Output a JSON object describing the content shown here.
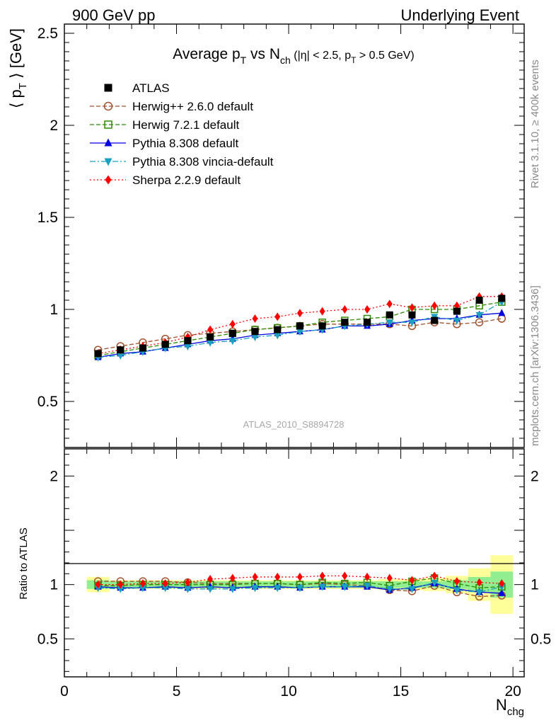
{
  "header": {
    "left": "900 GeV pp",
    "right": "Underlying Event"
  },
  "side_labels": {
    "rivet": "Rivet 3.1.10, ≥ 400k events",
    "mcplots": "mcplots.cern.ch [arXiv:1306.3436]"
  },
  "colors": {
    "ATLAS": "#000000",
    "Herwig++ 2.6.0 default": "#a0522d",
    "Herwig 7.2.1 default": "#2e8b00",
    "Pythia 8.308 default": "#0000e0",
    "Pythia 8.308 vincia-default": "#1aa0c0",
    "Sherpa 2.2.9 default": "#ff0000",
    "band_inner": "#90ee90",
    "band_outer": "#ffff99"
  },
  "chart_data": [
    {
      "type": "line",
      "title": "Average pT vs Nch (|η| < 2.5, pT > 0.5 GeV)",
      "title_parts": {
        "main_a": "Average p",
        "main_sub_a": "T",
        "main_b": " vs N",
        "main_sub_b": "ch",
        "cond_a": " (|η| < 2.5, p",
        "cond_sub": "T",
        "cond_b": " > 0.5 GeV)"
      },
      "ylabel": "⟨ pT ⟩ [GeV]",
      "ylabel_parts": {
        "a": "⟨ p",
        "sub": "T",
        "b": " ⟩ [GeV]"
      },
      "xlim": [
        0,
        20.5
      ],
      "ylim": [
        0.25,
        2.55
      ],
      "yticks": [
        0.5,
        1,
        1.5,
        2,
        2.5
      ],
      "ytick_labels": [
        "0.5",
        "1",
        "1.5",
        "2",
        "2.5"
      ],
      "watermark": "ATLAS_2010_S8894728",
      "legend_position": "top-left",
      "x": [
        1.5,
        2.5,
        3.5,
        4.5,
        5.5,
        6.5,
        7.5,
        8.5,
        9.5,
        10.5,
        11.5,
        12.5,
        13.5,
        14.5,
        15.5,
        16.5,
        17.5,
        18.5,
        19.5
      ],
      "series": [
        {
          "name": "ATLAS",
          "marker": "square-filled",
          "line": "none",
          "values": [
            0.76,
            0.78,
            0.79,
            0.81,
            0.83,
            0.85,
            0.87,
            0.88,
            0.89,
            0.91,
            0.91,
            0.93,
            0.93,
            0.97,
            0.97,
            0.94,
            0.99,
            1.05,
            1.06
          ]
        },
        {
          "name": "Herwig++ 2.6.0 default",
          "marker": "circle-open",
          "line": "dashed",
          "values": [
            0.78,
            0.8,
            0.82,
            0.84,
            0.86,
            0.87,
            0.88,
            0.89,
            0.9,
            0.91,
            0.92,
            0.92,
            0.92,
            0.92,
            0.91,
            0.93,
            0.92,
            0.93,
            0.95
          ]
        },
        {
          "name": "Herwig 7.2.1 default",
          "marker": "square-open",
          "line": "dashed",
          "values": [
            0.75,
            0.77,
            0.79,
            0.81,
            0.83,
            0.85,
            0.87,
            0.89,
            0.9,
            0.91,
            0.93,
            0.94,
            0.95,
            0.96,
            1.0,
            1.0,
            1.0,
            1.02,
            1.04
          ]
        },
        {
          "name": "Pythia 8.308 default",
          "marker": "triangle-up-filled",
          "line": "solid",
          "values": [
            0.74,
            0.76,
            0.77,
            0.79,
            0.81,
            0.83,
            0.84,
            0.86,
            0.87,
            0.88,
            0.89,
            0.91,
            0.91,
            0.92,
            0.94,
            0.95,
            0.95,
            0.97,
            0.98
          ]
        },
        {
          "name": "Pythia 8.308 vincia-default",
          "marker": "triangle-down-filled",
          "line": "dashdot",
          "values": [
            0.74,
            0.75,
            0.77,
            0.79,
            0.8,
            0.82,
            0.83,
            0.85,
            0.86,
            0.88,
            0.89,
            0.91,
            0.92,
            0.93,
            0.93,
            0.96,
            0.94,
            0.97,
            1.04
          ]
        },
        {
          "name": "Sherpa 2.2.9 default",
          "marker": "diamond-filled",
          "line": "dotted",
          "values": [
            0.76,
            0.78,
            0.8,
            0.82,
            0.85,
            0.89,
            0.92,
            0.95,
            0.96,
            0.98,
            0.99,
            1.0,
            1.0,
            1.03,
            1.01,
            1.02,
            1.02,
            1.07,
            1.07
          ]
        }
      ]
    },
    {
      "type": "line",
      "ylabel": "Ratio to ATLAS",
      "xlabel": "Nchg",
      "xlabel_parts": {
        "a": "N",
        "sub": "chg"
      },
      "xlim": [
        0,
        20.5
      ],
      "ylim": [
        0.15,
        2.25
      ],
      "xticks": [
        0,
        5,
        10,
        15,
        20
      ],
      "xtick_labels": [
        "0",
        "5",
        "10",
        "15",
        "20"
      ],
      "yticks": [
        0.5,
        1,
        2
      ],
      "ytick_labels": [
        "0.5",
        "1",
        "2"
      ],
      "x": [
        1.5,
        2.5,
        3.5,
        4.5,
        5.5,
        6.5,
        7.5,
        8.5,
        9.5,
        10.5,
        11.5,
        12.5,
        13.5,
        14.5,
        15.5,
        16.5,
        17.5,
        18.5,
        19.5
      ],
      "x_bins": [
        [
          1,
          2
        ],
        [
          2,
          3
        ],
        [
          3,
          4
        ],
        [
          4,
          5
        ],
        [
          5,
          6
        ],
        [
          6,
          7
        ],
        [
          7,
          8
        ],
        [
          8,
          9
        ],
        [
          9,
          10
        ],
        [
          10,
          11
        ],
        [
          11,
          12
        ],
        [
          12,
          13
        ],
        [
          13,
          14
        ],
        [
          14,
          15
        ],
        [
          15,
          16
        ],
        [
          16,
          17
        ],
        [
          17,
          18
        ],
        [
          18,
          19
        ],
        [
          19,
          20
        ]
      ],
      "band_stat": [
        0.04,
        0.03,
        0.03,
        0.03,
        0.03,
        0.03,
        0.03,
        0.03,
        0.03,
        0.03,
        0.03,
        0.03,
        0.03,
        0.03,
        0.03,
        0.03,
        0.04,
        0.07,
        0.12
      ],
      "band_total": [
        0.07,
        0.04,
        0.04,
        0.04,
        0.04,
        0.04,
        0.04,
        0.04,
        0.04,
        0.04,
        0.04,
        0.04,
        0.04,
        0.05,
        0.05,
        0.06,
        0.08,
        0.15,
        0.27
      ],
      "series": [
        {
          "name": "Herwig++ 2.6.0 default",
          "marker": "circle-open",
          "line": "dashed",
          "values": [
            1.03,
            1.03,
            1.03,
            1.03,
            1.02,
            1.01,
            1.01,
            1.01,
            1.01,
            1.0,
            1.01,
            1.0,
            0.99,
            0.95,
            0.94,
            0.99,
            0.93,
            0.89,
            0.9
          ]
        },
        {
          "name": "Herwig 7.2.1 default",
          "marker": "square-open",
          "line": "dashed",
          "values": [
            0.99,
            0.99,
            1.0,
            1.0,
            1.0,
            1.0,
            1.0,
            1.01,
            1.01,
            1.0,
            1.02,
            1.01,
            1.02,
            0.99,
            1.03,
            1.06,
            1.01,
            0.97,
            0.98
          ]
        },
        {
          "name": "Pythia 8.308 default",
          "marker": "triangle-up-filled",
          "line": "solid",
          "values": [
            0.98,
            0.97,
            0.97,
            0.98,
            0.97,
            0.98,
            0.97,
            0.98,
            0.98,
            0.97,
            0.98,
            0.98,
            0.98,
            0.95,
            0.97,
            1.01,
            0.96,
            0.93,
            0.92
          ]
        },
        {
          "name": "Pythia 8.308 vincia-default",
          "marker": "triangle-down-filled",
          "line": "dashdot",
          "values": [
            0.97,
            0.96,
            0.97,
            0.97,
            0.96,
            0.96,
            0.96,
            0.97,
            0.97,
            0.97,
            0.98,
            0.98,
            0.99,
            0.96,
            0.96,
            1.02,
            0.95,
            0.93,
            0.98
          ]
        },
        {
          "name": "Sherpa 2.2.9 default",
          "marker": "diamond-filled",
          "line": "dotted",
          "values": [
            1.0,
            1.0,
            1.01,
            1.01,
            1.02,
            1.05,
            1.06,
            1.07,
            1.07,
            1.07,
            1.08,
            1.08,
            1.07,
            1.06,
            1.04,
            1.08,
            1.03,
            1.02,
            1.01
          ]
        }
      ]
    }
  ]
}
